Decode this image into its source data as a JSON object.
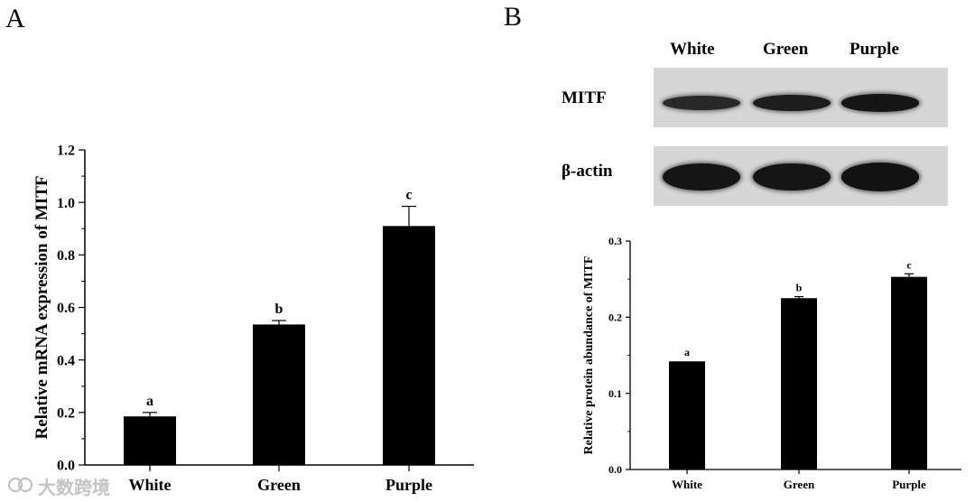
{
  "panel_a": {
    "label": "A",
    "chart_data": {
      "type": "bar",
      "title": "",
      "xlabel": "",
      "ylabel": "Relative mRNA expression of MITF",
      "categories": [
        "White",
        "Green",
        "Purple"
      ],
      "values": [
        0.185,
        0.535,
        0.91
      ],
      "errors": [
        0.015,
        0.015,
        0.075
      ],
      "significance_letters": [
        "a",
        "b",
        "c"
      ],
      "ylim": [
        0.0,
        1.2
      ],
      "yticks": [
        "0.0",
        "0.2",
        "0.4",
        "0.6",
        "0.8",
        "1.0",
        "1.2"
      ],
      "grid": false,
      "bar_color": "#000000"
    }
  },
  "panel_b": {
    "label": "B",
    "blot": {
      "lane_labels": [
        "White",
        "Green",
        "Purple"
      ],
      "rows": [
        {
          "name": "MITF",
          "intensity": [
            0.55,
            0.75,
            0.9
          ]
        },
        {
          "name": "β-actin",
          "intensity": [
            0.9,
            0.9,
            0.95
          ]
        }
      ]
    },
    "chart_data": {
      "type": "bar",
      "title": "",
      "xlabel": "",
      "ylabel": "Relative protein abundance of MITF",
      "categories": [
        "White",
        "Green",
        "Purple"
      ],
      "values": [
        0.142,
        0.225,
        0.253
      ],
      "errors": [
        0.0,
        0.002,
        0.004
      ],
      "significance_letters": [
        "a",
        "b",
        "c"
      ],
      "ylim": [
        0.0,
        0.3
      ],
      "yticks": [
        "0.0",
        "0.1",
        "0.2",
        "0.3"
      ],
      "grid": false,
      "bar_color": "#000000"
    }
  },
  "watermark": {
    "text": "大数跨境",
    "icon": "logo-mark-icon"
  }
}
